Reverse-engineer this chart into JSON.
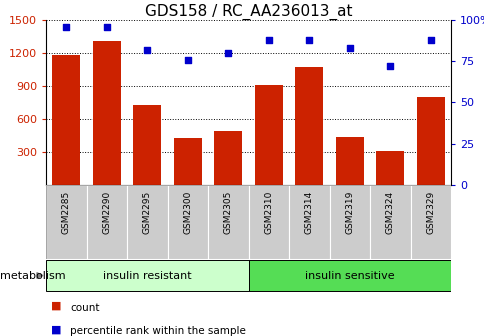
{
  "title": "GDS158 / RC_AA236013_at",
  "categories": [
    "GSM2285",
    "GSM2290",
    "GSM2295",
    "GSM2300",
    "GSM2305",
    "GSM2310",
    "GSM2314",
    "GSM2319",
    "GSM2324",
    "GSM2329"
  ],
  "counts": [
    1185,
    1310,
    730,
    430,
    490,
    905,
    1075,
    440,
    305,
    800
  ],
  "percentile_ranks": [
    96,
    96,
    82,
    76,
    80,
    88,
    88,
    83,
    72,
    88
  ],
  "bar_color": "#cc2200",
  "dot_color": "#0000cc",
  "ylim_left": [
    0,
    1500
  ],
  "ylim_right": [
    0,
    100
  ],
  "yticks_left": [
    300,
    600,
    900,
    1200,
    1500
  ],
  "yticks_right": [
    0,
    25,
    50,
    75,
    100
  ],
  "group1_label": "insulin resistant",
  "group2_label": "insulin sensitive",
  "group1_indices": [
    0,
    1,
    2,
    3,
    4
  ],
  "group2_indices": [
    5,
    6,
    7,
    8,
    9
  ],
  "group1_color": "#ccffcc",
  "group2_color": "#55dd55",
  "xtick_bg_color": "#cccccc",
  "metabolism_label": "metabolism",
  "legend_count_label": "count",
  "legend_percentile_label": "percentile rank within the sample",
  "title_fontsize": 11,
  "tick_fontsize": 8,
  "label_fontsize": 8
}
